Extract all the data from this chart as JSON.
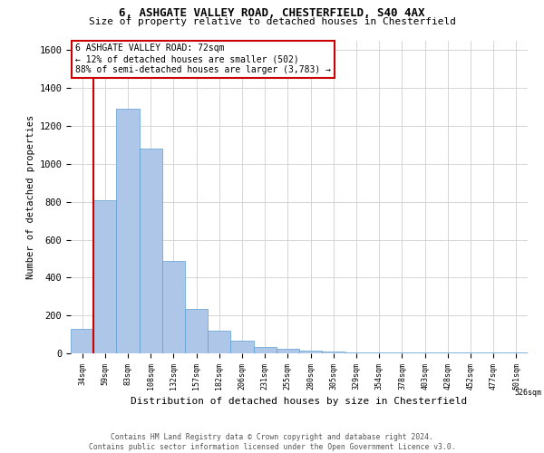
{
  "title1": "6, ASHGATE VALLEY ROAD, CHESTERFIELD, S40 4AX",
  "title2": "Size of property relative to detached houses in Chesterfield",
  "xlabel": "Distribution of detached houses by size in Chesterfield",
  "ylabel": "Number of detached properties",
  "bar_values": [
    130,
    810,
    1290,
    1080,
    490,
    235,
    120,
    65,
    35,
    25,
    15,
    10,
    5,
    5,
    5,
    5,
    5,
    5,
    5,
    5
  ],
  "bar_labels": [
    "34sqm",
    "59sqm",
    "83sqm",
    "108sqm",
    "132sqm",
    "157sqm",
    "182sqm",
    "206sqm",
    "231sqm",
    "255sqm",
    "280sqm",
    "305sqm",
    "329sqm",
    "354sqm",
    "378sqm",
    "403sqm",
    "428sqm",
    "452sqm",
    "477sqm",
    "501sqm",
    "526sqm"
  ],
  "bar_color": "#aec6e8",
  "bar_edge_color": "#5a9fd4",
  "vline_color": "#cc0000",
  "vline_pos": 0.5,
  "annotation_text": "6 ASHGATE VALLEY ROAD: 72sqm\n← 12% of detached houses are smaller (502)\n88% of semi-detached houses are larger (3,783) →",
  "annotation_box_color": "#ffffff",
  "annotation_box_edge": "#cc0000",
  "ylim": [
    0,
    1650
  ],
  "yticks": [
    0,
    200,
    400,
    600,
    800,
    1000,
    1200,
    1400,
    1600
  ],
  "footer1": "Contains HM Land Registry data © Crown copyright and database right 2024.",
  "footer2": "Contains public sector information licensed under the Open Government Licence v3.0.",
  "bg_color": "#ffffff",
  "grid_color": "#d0d0d0"
}
